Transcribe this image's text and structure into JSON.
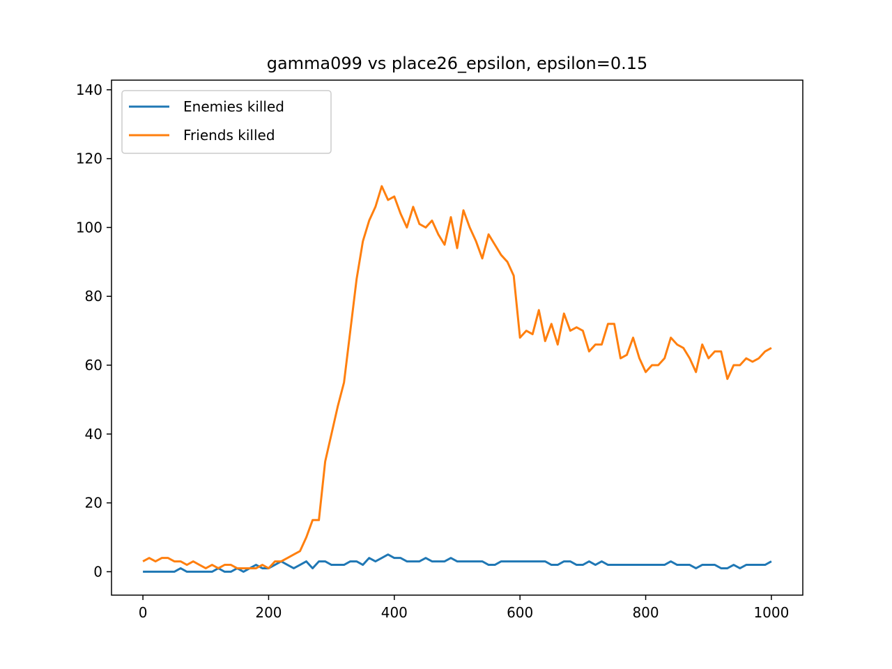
{
  "chart_data": {
    "type": "line",
    "title": "gamma099 vs place26_epsilon, epsilon=0.15",
    "xlabel": "",
    "ylabel": "",
    "xlim": [
      -50,
      1050
    ],
    "ylim": [
      -6.8,
      142.8
    ],
    "xticks": [
      0,
      200,
      400,
      600,
      800,
      1000
    ],
    "xtick_labels": [
      "0",
      "200",
      "400",
      "600",
      "800",
      "1000"
    ],
    "yticks": [
      0,
      20,
      40,
      60,
      80,
      100,
      120,
      140
    ],
    "ytick_labels": [
      "0",
      "20",
      "40",
      "60",
      "80",
      "100",
      "120",
      "140"
    ],
    "grid": false,
    "legend_position": "top-left",
    "x_step": 10,
    "series": [
      {
        "name": "Enemies killed",
        "color": "#1f77b4",
        "values": [
          0,
          0,
          0,
          0,
          0,
          0,
          1,
          0,
          0,
          0,
          0,
          0,
          1,
          0,
          0,
          1,
          0,
          1,
          2,
          1,
          1,
          2,
          3,
          2,
          1,
          2,
          3,
          1,
          3,
          3,
          2,
          2,
          2,
          3,
          3,
          2,
          4,
          3,
          4,
          5,
          4,
          4,
          3,
          3,
          3,
          4,
          3,
          3,
          3,
          4,
          3,
          3,
          3,
          3,
          3,
          2,
          2,
          3,
          3,
          3,
          3,
          3,
          3,
          3,
          3,
          2,
          2,
          3,
          3,
          2,
          2,
          3,
          2,
          3,
          2,
          2,
          2,
          2,
          2,
          2,
          2,
          2,
          2,
          2,
          3,
          2,
          2,
          2,
          1,
          2,
          2,
          2,
          1,
          1,
          2,
          1,
          2,
          2,
          2,
          2,
          3
        ]
      },
      {
        "name": "Friends killed",
        "color": "#ff7f0e",
        "values": [
          3,
          4,
          3,
          4,
          4,
          3,
          3,
          2,
          3,
          2,
          1,
          2,
          1,
          2,
          2,
          1,
          1,
          1,
          1,
          2,
          1,
          3,
          3,
          4,
          5,
          6,
          10,
          15,
          15,
          32,
          40,
          48,
          55,
          70,
          85,
          96,
          102,
          106,
          112,
          108,
          109,
          104,
          100,
          106,
          101,
          100,
          102,
          98,
          95,
          103,
          94,
          105,
          100,
          96,
          91,
          98,
          95,
          92,
          90,
          86,
          68,
          70,
          69,
          76,
          67,
          72,
          66,
          75,
          70,
          71,
          70,
          64,
          66,
          66,
          72,
          72,
          62,
          63,
          68,
          62,
          58,
          60,
          60,
          62,
          68,
          66,
          65,
          62,
          58,
          66,
          62,
          64,
          64,
          56,
          60,
          60,
          62,
          61,
          62,
          64,
          65
        ]
      }
    ]
  }
}
